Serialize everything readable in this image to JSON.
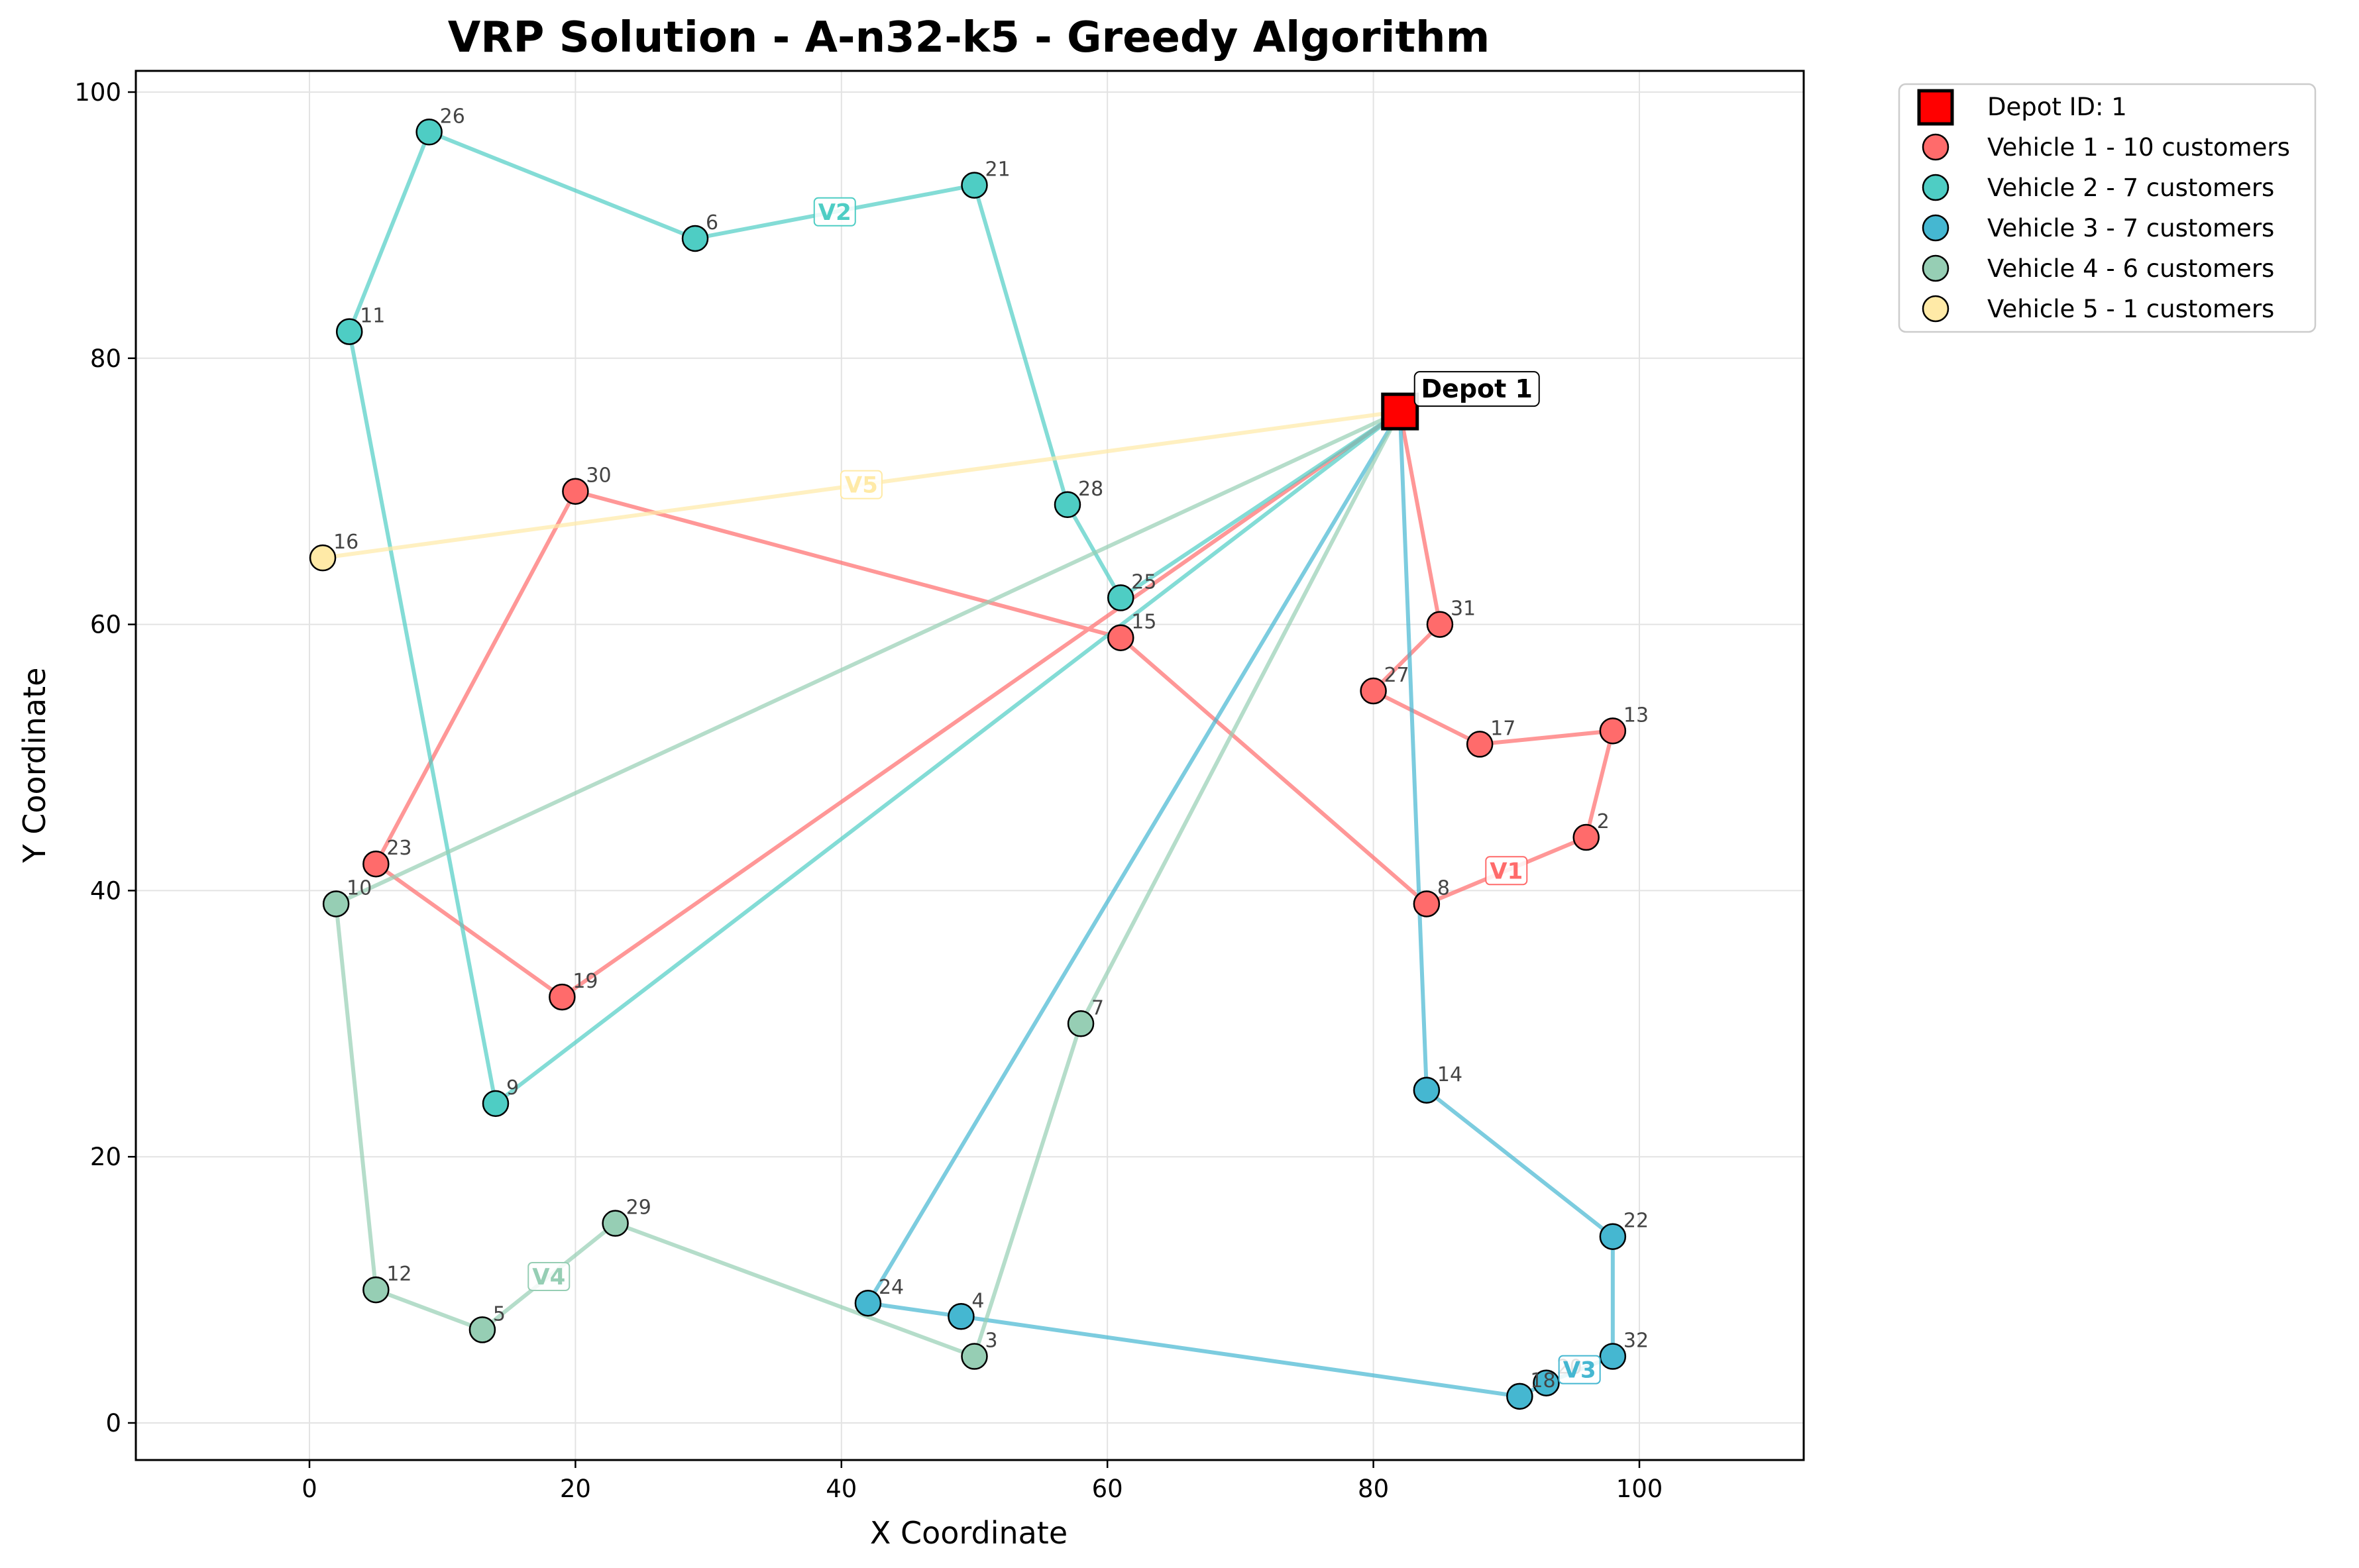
{
  "chart_data": {
    "type": "scatter",
    "title": "VRP Solution - A-n32-k5 - Greedy Algorithm",
    "xlabel": "X Coordinate",
    "ylabel": "Y Coordinate",
    "xlim": [
      -13,
      112
    ],
    "ylim": [
      -3,
      102
    ],
    "xticks": [
      0,
      20,
      40,
      60,
      80,
      100
    ],
    "yticks": [
      0,
      20,
      40,
      60,
      80,
      100
    ],
    "grid": true,
    "legend_position": "outside-top-right",
    "depot": {
      "id": 1,
      "x": 82,
      "y": 76,
      "label": "Depot 1",
      "legend": "Depot ID: 1",
      "color": "#ff0000"
    },
    "series": [
      {
        "name": "Vehicle 1 - 10 customers",
        "route_label": "V1",
        "color": "#ff6b6b",
        "route": [
          {
            "id": 31,
            "x": 85,
            "y": 60
          },
          {
            "id": 27,
            "x": 80,
            "y": 55
          },
          {
            "id": 17,
            "x": 88,
            "y": 51
          },
          {
            "id": 13,
            "x": 98,
            "y": 52
          },
          {
            "id": 2,
            "x": 96,
            "y": 44
          },
          {
            "id": 8,
            "x": 84,
            "y": 39
          },
          {
            "id": 15,
            "x": 61,
            "y": 59
          },
          {
            "id": 30,
            "x": 20,
            "y": 70
          },
          {
            "id": 23,
            "x": 5,
            "y": 42
          },
          {
            "id": 19,
            "x": 19,
            "y": 32
          }
        ]
      },
      {
        "name": "Vehicle 2 - 7 customers",
        "route_label": "V2",
        "color": "#4ecdc4",
        "route": [
          {
            "id": 25,
            "x": 61,
            "y": 62
          },
          {
            "id": 28,
            "x": 57,
            "y": 69
          },
          {
            "id": 21,
            "x": 50,
            "y": 93
          },
          {
            "id": 6,
            "x": 29,
            "y": 89
          },
          {
            "id": 26,
            "x": 9,
            "y": 97
          },
          {
            "id": 11,
            "x": 3,
            "y": 82
          },
          {
            "id": 9,
            "x": 14,
            "y": 24
          }
        ]
      },
      {
        "name": "Vehicle 3 - 7 customers",
        "route_label": "V3",
        "color": "#45b7d1",
        "route": [
          {
            "id": 14,
            "x": 84,
            "y": 25
          },
          {
            "id": 22,
            "x": 98,
            "y": 14
          },
          {
            "id": 32,
            "x": 98,
            "y": 5
          },
          {
            "id": 20,
            "x": 93,
            "y": 3
          },
          {
            "id": 18,
            "x": 91,
            "y": 2
          },
          {
            "id": 4,
            "x": 49,
            "y": 8
          },
          {
            "id": 24,
            "x": 42,
            "y": 9
          }
        ]
      },
      {
        "name": "Vehicle 4 - 6 customers",
        "route_label": "V4",
        "color": "#96ceb4",
        "route": [
          {
            "id": 7,
            "x": 58,
            "y": 30
          },
          {
            "id": 3,
            "x": 50,
            "y": 5
          },
          {
            "id": 29,
            "x": 23,
            "y": 15
          },
          {
            "id": 5,
            "x": 13,
            "y": 7
          },
          {
            "id": 12,
            "x": 5,
            "y": 10
          },
          {
            "id": 10,
            "x": 2,
            "y": 39
          }
        ]
      },
      {
        "name": "Vehicle 5 - 1 customers",
        "route_label": "V5",
        "color": "#ffeaa7",
        "route": [
          {
            "id": 16,
            "x": 1,
            "y": 65
          }
        ]
      }
    ]
  }
}
